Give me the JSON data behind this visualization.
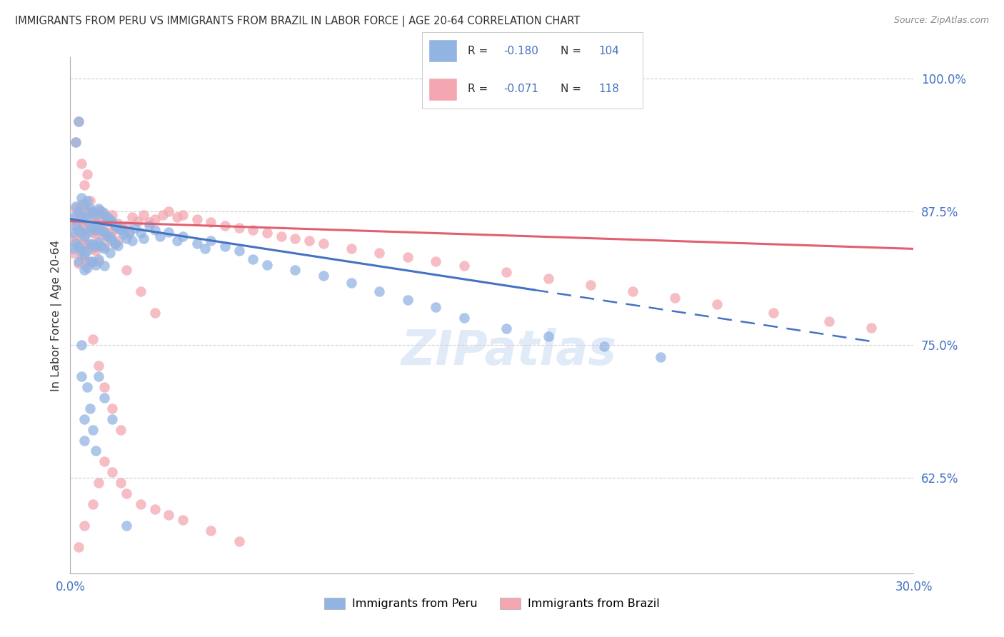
{
  "title": "IMMIGRANTS FROM PERU VS IMMIGRANTS FROM BRAZIL IN LABOR FORCE | AGE 20-64 CORRELATION CHART",
  "source": "Source: ZipAtlas.com",
  "ylabel": "In Labor Force | Age 20-64",
  "xmin": 0.0,
  "xmax": 0.3,
  "ymin": 0.535,
  "ymax": 1.02,
  "yticks": [
    1.0,
    0.875,
    0.75,
    0.625
  ],
  "ytick_labels": [
    "100.0%",
    "87.5%",
    "75.0%",
    "62.5%"
  ],
  "xticks": [
    0.0,
    0.05,
    0.1,
    0.15,
    0.2,
    0.25,
    0.3
  ],
  "peru_color": "#92b4e3",
  "brazil_color": "#f4a7b0",
  "peru_line_color": "#4472c4",
  "brazil_line_color": "#e06070",
  "background_color": "#ffffff",
  "grid_color": "#d0d0d0",
  "watermark_color": "#c5d8f0",
  "peru_x": [
    0.001,
    0.001,
    0.001,
    0.002,
    0.002,
    0.002,
    0.003,
    0.003,
    0.003,
    0.003,
    0.004,
    0.004,
    0.004,
    0.004,
    0.005,
    0.005,
    0.005,
    0.005,
    0.005,
    0.006,
    0.006,
    0.006,
    0.006,
    0.006,
    0.007,
    0.007,
    0.007,
    0.007,
    0.008,
    0.008,
    0.008,
    0.008,
    0.009,
    0.009,
    0.009,
    0.009,
    0.01,
    0.01,
    0.01,
    0.01,
    0.011,
    0.011,
    0.011,
    0.012,
    0.012,
    0.012,
    0.012,
    0.013,
    0.013,
    0.014,
    0.014,
    0.014,
    0.015,
    0.015,
    0.016,
    0.016,
    0.017,
    0.017,
    0.018,
    0.019,
    0.02,
    0.021,
    0.022,
    0.023,
    0.025,
    0.026,
    0.028,
    0.03,
    0.032,
    0.035,
    0.038,
    0.04,
    0.045,
    0.048,
    0.05,
    0.055,
    0.06,
    0.065,
    0.07,
    0.08,
    0.09,
    0.1,
    0.11,
    0.12,
    0.13,
    0.14,
    0.155,
    0.17,
    0.19,
    0.21,
    0.002,
    0.003,
    0.004,
    0.004,
    0.005,
    0.005,
    0.006,
    0.007,
    0.008,
    0.009,
    0.01,
    0.012,
    0.015,
    0.02
  ],
  "peru_y": [
    0.87,
    0.855,
    0.84,
    0.88,
    0.862,
    0.845,
    0.875,
    0.858,
    0.842,
    0.828,
    0.888,
    0.872,
    0.855,
    0.838,
    0.882,
    0.868,
    0.852,
    0.835,
    0.82,
    0.885,
    0.87,
    0.855,
    0.838,
    0.822,
    0.878,
    0.862,
    0.845,
    0.828,
    0.875,
    0.86,
    0.844,
    0.828,
    0.872,
    0.858,
    0.842,
    0.825,
    0.878,
    0.862,
    0.846,
    0.83,
    0.875,
    0.858,
    0.842,
    0.872,
    0.856,
    0.84,
    0.824,
    0.87,
    0.852,
    0.868,
    0.852,
    0.836,
    0.865,
    0.848,
    0.862,
    0.845,
    0.86,
    0.843,
    0.858,
    0.854,
    0.85,
    0.855,
    0.848,
    0.86,
    0.855,
    0.85,
    0.862,
    0.858,
    0.852,
    0.856,
    0.848,
    0.852,
    0.845,
    0.84,
    0.848,
    0.842,
    0.838,
    0.83,
    0.825,
    0.82,
    0.815,
    0.808,
    0.8,
    0.792,
    0.785,
    0.775,
    0.765,
    0.758,
    0.748,
    0.738,
    0.94,
    0.96,
    0.75,
    0.72,
    0.68,
    0.66,
    0.71,
    0.69,
    0.67,
    0.65,
    0.72,
    0.7,
    0.68,
    0.58
  ],
  "brazil_x": [
    0.001,
    0.001,
    0.001,
    0.002,
    0.002,
    0.002,
    0.003,
    0.003,
    0.003,
    0.003,
    0.004,
    0.004,
    0.004,
    0.004,
    0.005,
    0.005,
    0.005,
    0.005,
    0.006,
    0.006,
    0.006,
    0.006,
    0.007,
    0.007,
    0.007,
    0.007,
    0.008,
    0.008,
    0.008,
    0.009,
    0.009,
    0.009,
    0.01,
    0.01,
    0.01,
    0.01,
    0.011,
    0.011,
    0.012,
    0.012,
    0.012,
    0.013,
    0.013,
    0.014,
    0.014,
    0.015,
    0.015,
    0.016,
    0.016,
    0.017,
    0.017,
    0.018,
    0.019,
    0.02,
    0.021,
    0.022,
    0.024,
    0.026,
    0.028,
    0.03,
    0.033,
    0.035,
    0.038,
    0.04,
    0.045,
    0.05,
    0.055,
    0.06,
    0.065,
    0.07,
    0.075,
    0.08,
    0.085,
    0.09,
    0.1,
    0.11,
    0.12,
    0.13,
    0.14,
    0.155,
    0.17,
    0.185,
    0.2,
    0.215,
    0.23,
    0.25,
    0.27,
    0.285,
    0.002,
    0.003,
    0.004,
    0.005,
    0.006,
    0.007,
    0.008,
    0.01,
    0.012,
    0.015,
    0.018,
    0.02,
    0.025,
    0.03,
    0.01,
    0.008,
    0.005,
    0.003,
    0.012,
    0.015,
    0.018,
    0.02,
    0.025,
    0.03,
    0.035,
    0.04,
    0.05,
    0.06
  ],
  "brazil_y": [
    0.868,
    0.852,
    0.836,
    0.878,
    0.862,
    0.846,
    0.874,
    0.858,
    0.842,
    0.826,
    0.882,
    0.866,
    0.85,
    0.834,
    0.878,
    0.862,
    0.846,
    0.83,
    0.876,
    0.86,
    0.844,
    0.828,
    0.874,
    0.858,
    0.842,
    0.826,
    0.872,
    0.856,
    0.84,
    0.87,
    0.854,
    0.838,
    0.876,
    0.86,
    0.844,
    0.828,
    0.87,
    0.854,
    0.874,
    0.858,
    0.842,
    0.868,
    0.852,
    0.866,
    0.85,
    0.872,
    0.856,
    0.86,
    0.844,
    0.864,
    0.848,
    0.862,
    0.858,
    0.862,
    0.856,
    0.87,
    0.866,
    0.872,
    0.865,
    0.868,
    0.872,
    0.875,
    0.87,
    0.872,
    0.868,
    0.865,
    0.862,
    0.86,
    0.858,
    0.855,
    0.852,
    0.85,
    0.848,
    0.845,
    0.84,
    0.836,
    0.832,
    0.828,
    0.824,
    0.818,
    0.812,
    0.806,
    0.8,
    0.794,
    0.788,
    0.78,
    0.772,
    0.766,
    0.94,
    0.96,
    0.92,
    0.9,
    0.91,
    0.885,
    0.755,
    0.73,
    0.71,
    0.69,
    0.67,
    0.82,
    0.8,
    0.78,
    0.62,
    0.6,
    0.58,
    0.56,
    0.64,
    0.63,
    0.62,
    0.61,
    0.6,
    0.595,
    0.59,
    0.585,
    0.575,
    0.565
  ]
}
